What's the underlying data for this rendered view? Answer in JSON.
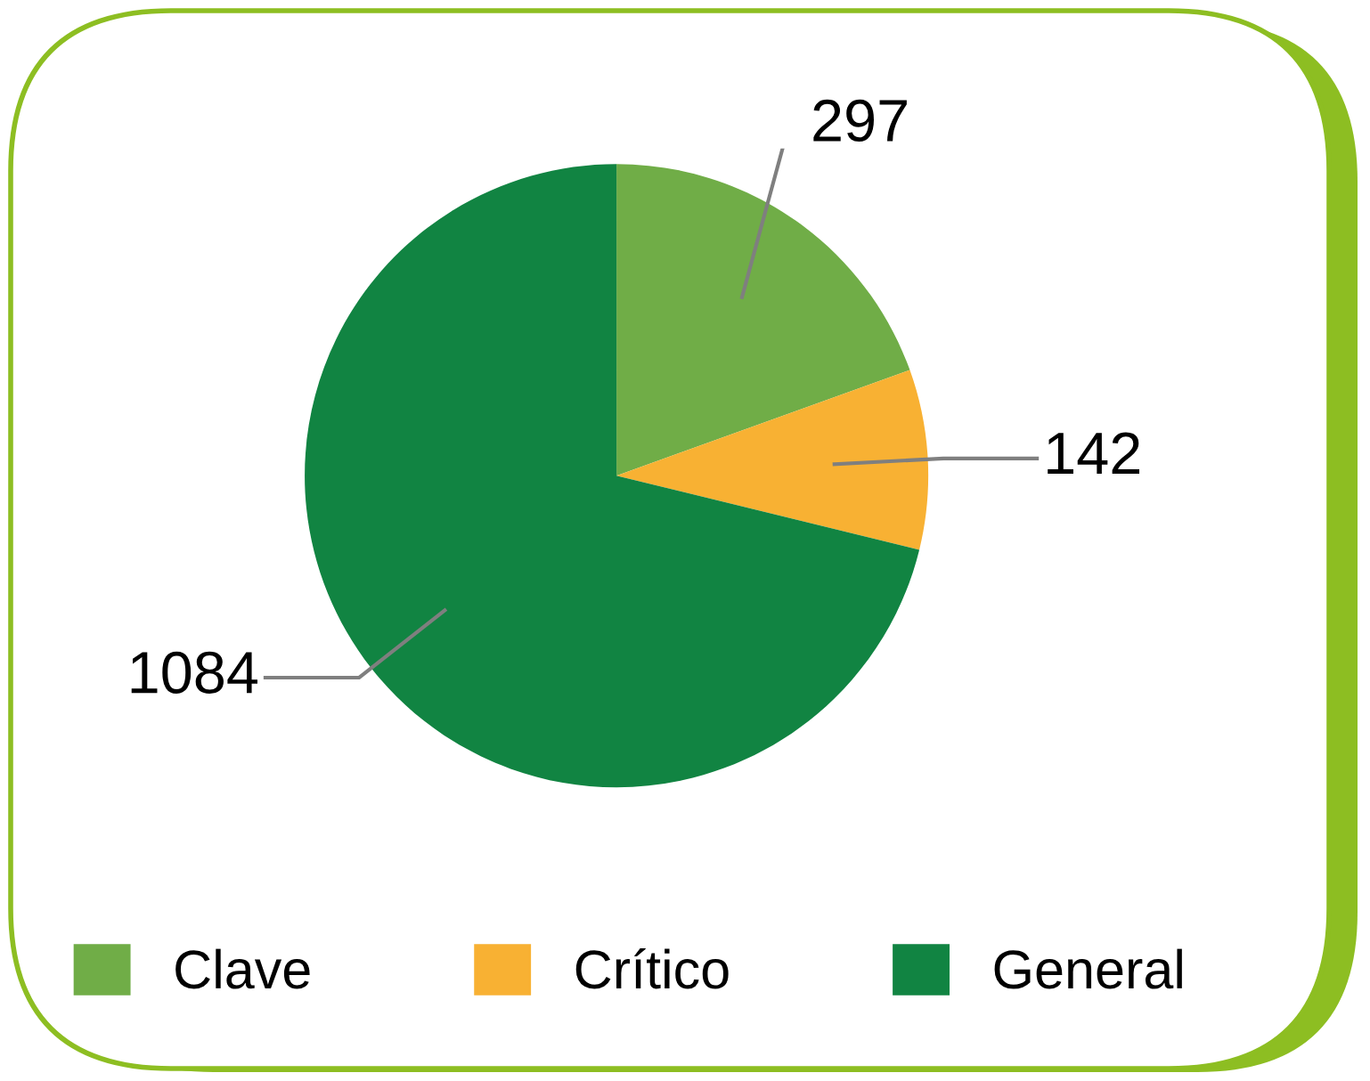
{
  "chart_data": {
    "type": "pie",
    "categories": [
      "Clave",
      "Crítico",
      "General"
    ],
    "values": [
      297,
      142,
      1084
    ],
    "colors": [
      "#70ad47",
      "#f8b133",
      "#118442"
    ],
    "data_labels": true,
    "legend": "bottom"
  }
}
